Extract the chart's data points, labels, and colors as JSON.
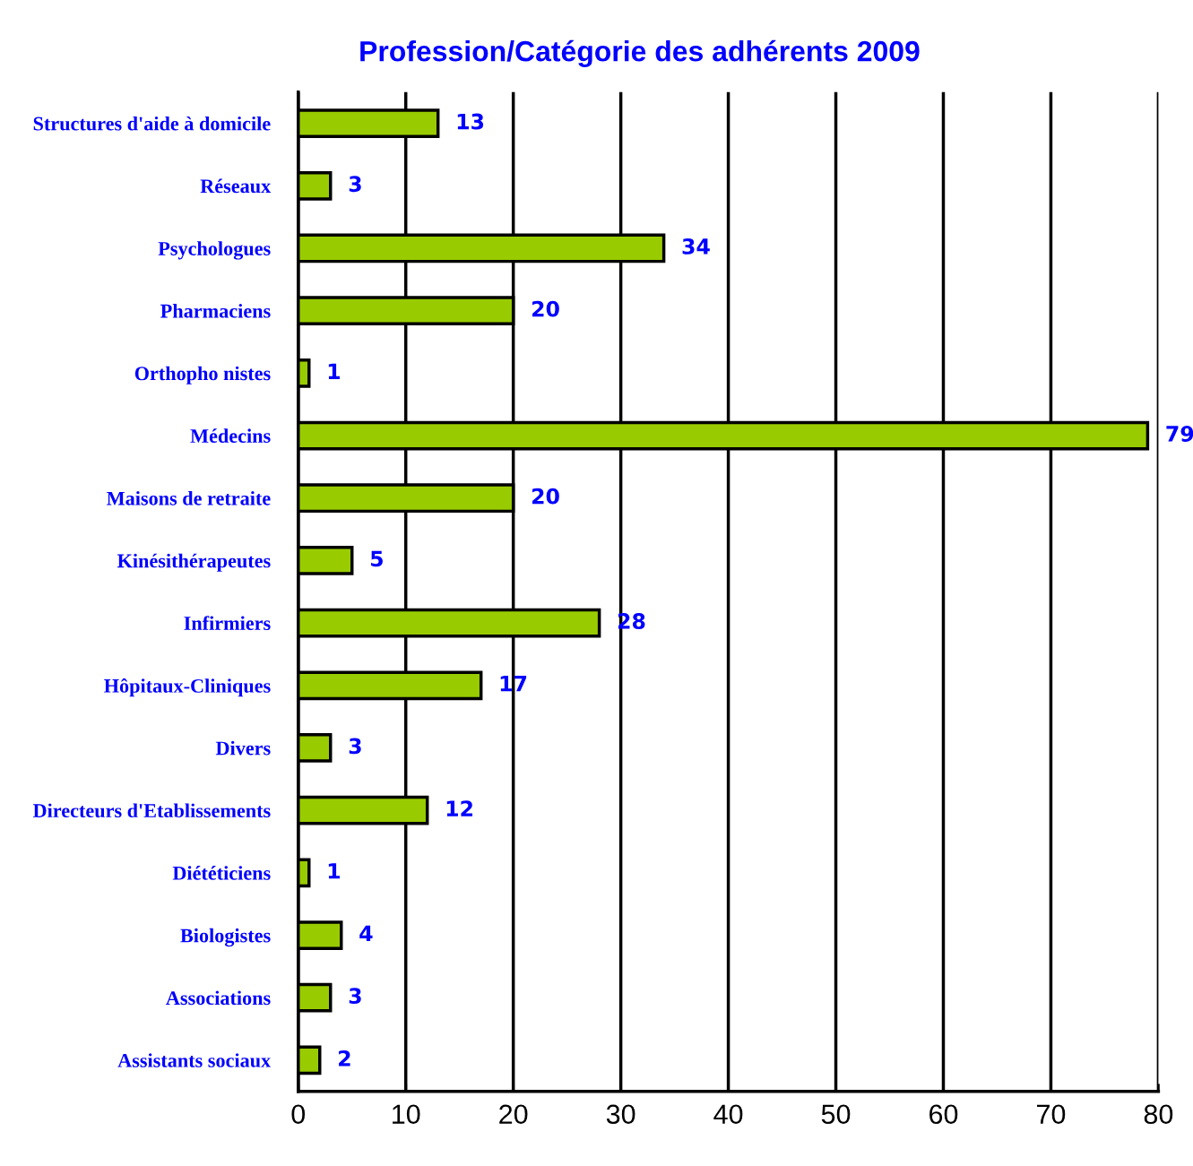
{
  "chart_data": {
    "type": "bar",
    "orientation": "horizontal",
    "title": "Profession/Catégorie des adhérents 2009",
    "categories": [
      "Structures d'aide à domicile",
      "Réseaux",
      "Psychologues",
      "Pharmaciens",
      "Orthopho nistes",
      "Médecins",
      "Maisons de retraite",
      "Kinésithérapeutes",
      "Infirmiers",
      "Hôpitaux-Cliniques",
      "Divers",
      "Directeurs d'Etablissements",
      "Diététiciens",
      "Biologistes",
      "Associations",
      "Assistants sociaux"
    ],
    "values": [
      13,
      3,
      34,
      20,
      1,
      79,
      20,
      5,
      28,
      17,
      3,
      12,
      1,
      4,
      3,
      2
    ],
    "color": "#99cc00",
    "xlim": [
      0,
      80
    ],
    "xticks": [
      0,
      10,
      20,
      30,
      40,
      50,
      60,
      70,
      80
    ],
    "grid": "x",
    "data_labels": true,
    "legend": false
  }
}
